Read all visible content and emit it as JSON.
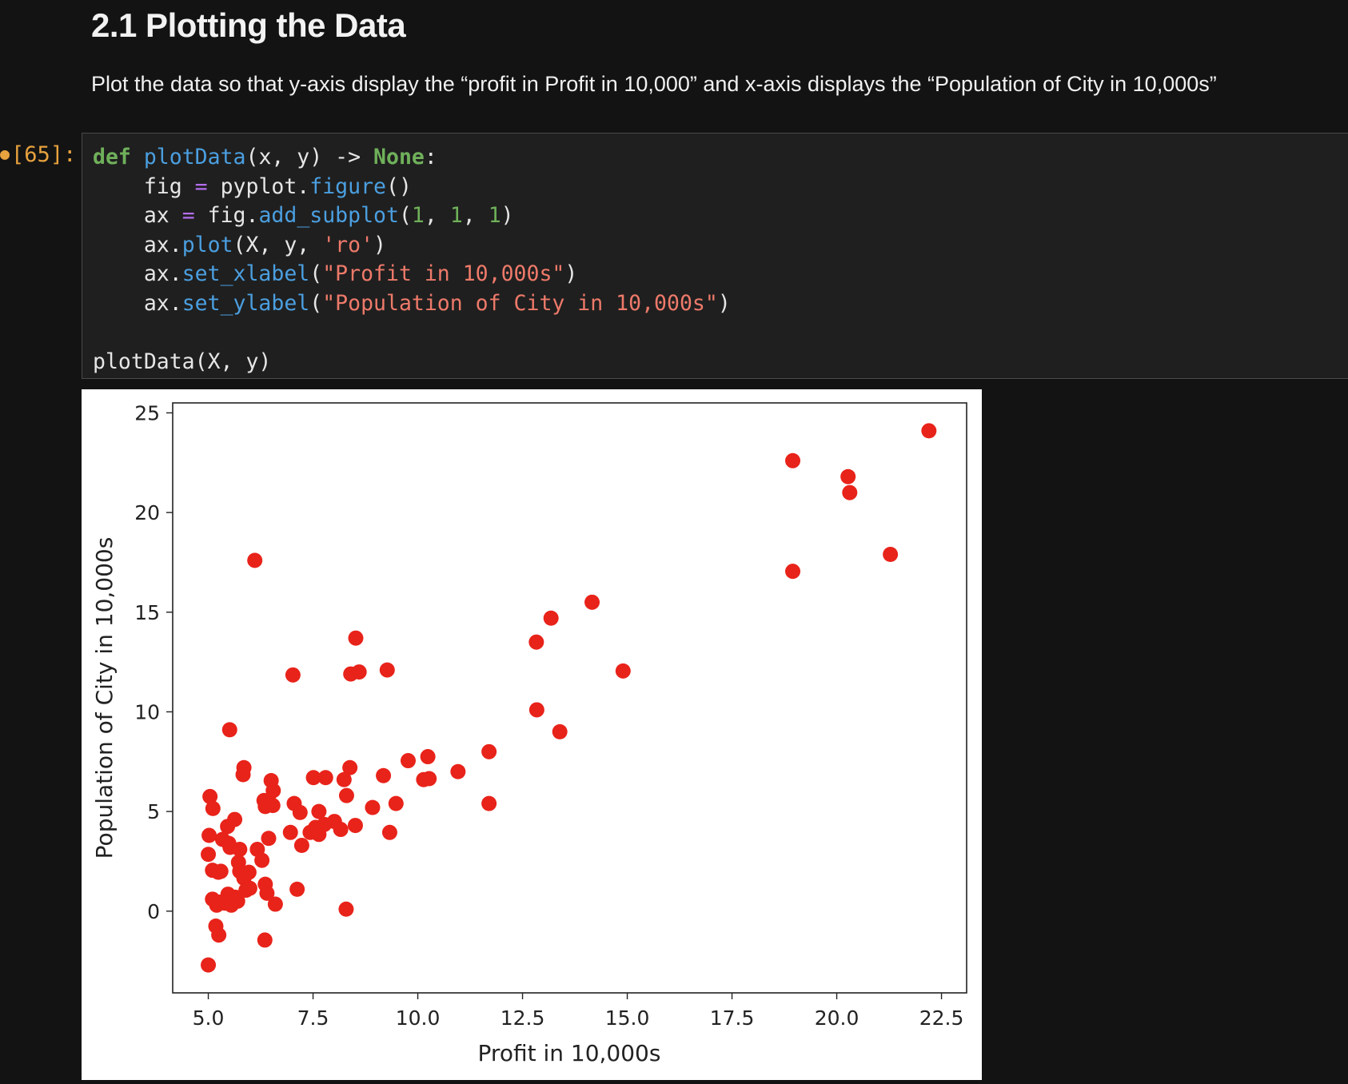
{
  "markdown": {
    "heading": "2.1 Plotting the Data",
    "paragraph": "Plot the data so that y-axis display the “profit in Profit in 10,000” and x-axis displays the “Population of City in 10,000s”"
  },
  "cell": {
    "prompt": "[65]:",
    "code": {
      "l1": {
        "def": "def",
        "name": "plotData",
        "args": "(x, y) -> ",
        "ret": "None",
        "colon": ":"
      },
      "l2": {
        "indent": "    ",
        "a": "fig ",
        "eq": "=",
        "b": " pyplot.",
        "fn": "figure",
        "c": "()"
      },
      "l3": {
        "indent": "    ",
        "a": "ax ",
        "eq": "=",
        "b": " fig.",
        "fn": "add_subplot",
        "c": "(",
        "n1": "1",
        "s1": ", ",
        "n2": "1",
        "s2": ", ",
        "n3": "1",
        "d": ")"
      },
      "l4": {
        "indent": "    ",
        "a": "ax.",
        "fn": "plot",
        "b": "(X, y, ",
        "str": "'ro'",
        "c": ")"
      },
      "l5": {
        "indent": "    ",
        "a": "ax.",
        "fn": "set_xlabel",
        "b": "(",
        "str": "\"Profit in 10,000s\"",
        "c": ")"
      },
      "l6": {
        "indent": "    ",
        "a": "ax.",
        "fn": "set_ylabel",
        "b": "(",
        "str": "\"Population of City in 10,000s\"",
        "c": ")"
      },
      "l8": "plotData(X, y)"
    }
  },
  "chart_data": {
    "type": "scatter",
    "xlabel": "Profit in 10,000s",
    "ylabel": "Population of City in 10,000s",
    "xlim": [
      4.15,
      23.1
    ],
    "ylim": [
      -4.1,
      25.5
    ],
    "xticks": [
      5.0,
      7.5,
      10.0,
      12.5,
      15.0,
      17.5,
      20.0,
      22.5
    ],
    "xtick_labels": [
      "5.0",
      "7.5",
      "10.0",
      "12.5",
      "15.0",
      "17.5",
      "20.0",
      "22.5"
    ],
    "yticks": [
      0,
      5,
      10,
      15,
      20,
      25
    ],
    "ytick_labels": [
      "0",
      "5",
      "10",
      "15",
      "20",
      "25"
    ],
    "marker_color": "#e8231a",
    "grid": false,
    "points": [
      [
        22.2,
        24.1
      ],
      [
        18.95,
        22.6
      ],
      [
        20.27,
        21.8
      ],
      [
        20.31,
        21.0
      ],
      [
        21.28,
        17.9
      ],
      [
        18.95,
        17.05
      ],
      [
        6.11,
        17.6
      ],
      [
        14.16,
        15.5
      ],
      [
        13.18,
        14.7
      ],
      [
        12.83,
        13.5
      ],
      [
        8.52,
        13.7
      ],
      [
        9.27,
        12.1
      ],
      [
        8.4,
        11.9
      ],
      [
        8.6,
        12.0
      ],
      [
        7.02,
        11.85
      ],
      [
        14.9,
        12.05
      ],
      [
        12.84,
        10.1
      ],
      [
        13.39,
        9.0
      ],
      [
        5.51,
        9.1
      ],
      [
        11.7,
        8.0
      ],
      [
        10.96,
        7.0
      ],
      [
        10.24,
        7.75
      ],
      [
        9.77,
        7.55
      ],
      [
        10.27,
        6.65
      ],
      [
        10.14,
        6.6
      ],
      [
        9.18,
        6.8
      ],
      [
        8.38,
        7.2
      ],
      [
        8.24,
        6.6
      ],
      [
        7.51,
        6.7
      ],
      [
        7.8,
        6.7
      ],
      [
        11.7,
        5.4
      ],
      [
        9.48,
        5.4
      ],
      [
        8.92,
        5.2
      ],
      [
        8.3,
        5.8
      ],
      [
        5.85,
        7.2
      ],
      [
        5.83,
        6.85
      ],
      [
        6.5,
        6.55
      ],
      [
        6.55,
        6.05
      ],
      [
        6.44,
        5.55
      ],
      [
        6.33,
        5.55
      ],
      [
        6.54,
        5.3
      ],
      [
        6.36,
        5.25
      ],
      [
        7.05,
        5.4
      ],
      [
        7.19,
        4.95
      ],
      [
        7.64,
        5.0
      ],
      [
        7.77,
        4.35
      ],
      [
        7.56,
        4.2
      ],
      [
        7.43,
        3.95
      ],
      [
        7.64,
        3.85
      ],
      [
        8.01,
        4.5
      ],
      [
        8.16,
        4.1
      ],
      [
        8.51,
        4.3
      ],
      [
        9.33,
        3.95
      ],
      [
        6.96,
        3.95
      ],
      [
        7.23,
        3.3
      ],
      [
        6.44,
        3.65
      ],
      [
        5.04,
        5.75
      ],
      [
        5.11,
        5.15
      ],
      [
        5.63,
        4.6
      ],
      [
        5.46,
        4.25
      ],
      [
        5.34,
        3.6
      ],
      [
        5.49,
        3.4
      ],
      [
        5.52,
        3.2
      ],
      [
        5.75,
        3.1
      ],
      [
        6.17,
        3.1
      ],
      [
        6.28,
        2.55
      ],
      [
        5.02,
        3.8
      ],
      [
        5.0,
        2.85
      ],
      [
        5.1,
        2.05
      ],
      [
        5.24,
        1.95
      ],
      [
        5.3,
        2.0
      ],
      [
        5.72,
        2.45
      ],
      [
        5.75,
        2.0
      ],
      [
        5.97,
        1.95
      ],
      [
        5.85,
        1.65
      ],
      [
        6.36,
        1.35
      ],
      [
        5.99,
        1.15
      ],
      [
        6.4,
        0.9
      ],
      [
        5.9,
        1.05
      ],
      [
        5.47,
        0.85
      ],
      [
        5.64,
        0.7
      ],
      [
        5.7,
        0.5
      ],
      [
        5.1,
        0.6
      ],
      [
        5.26,
        0.45
      ],
      [
        5.4,
        0.4
      ],
      [
        5.55,
        0.3
      ],
      [
        5.2,
        0.3
      ],
      [
        6.6,
        0.35
      ],
      [
        7.12,
        1.1
      ],
      [
        8.29,
        0.1
      ],
      [
        5.18,
        -0.75
      ],
      [
        5.25,
        -1.2
      ],
      [
        6.35,
        -1.45
      ],
      [
        5.0,
        -2.7
      ]
    ]
  }
}
